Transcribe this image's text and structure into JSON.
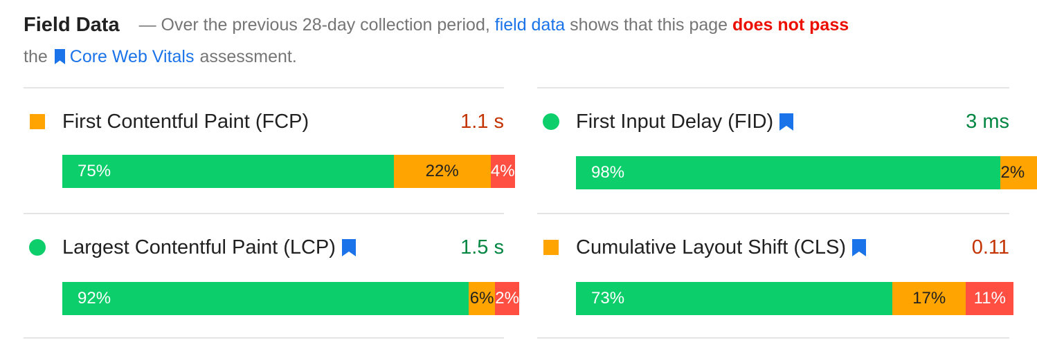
{
  "header": {
    "title": "Field Data",
    "desc_prefix": "— Over the previous 28-day collection period,",
    "field_data_link": "field data",
    "desc_middle": "shows that this page",
    "fail_text": "does not pass",
    "desc_the": "the",
    "cwv_link": "Core Web Vitals",
    "desc_suffix": "assessment."
  },
  "metrics": {
    "fcp": {
      "name": "First Contentful Paint (FCP)",
      "value": "1.1 s",
      "status": "needs-improvement",
      "distribution": {
        "good": "75%",
        "average": "22%",
        "poor": "4%"
      },
      "fractions": {
        "good": 0.75,
        "average": 0.22,
        "poor": 0.04
      }
    },
    "fid": {
      "name": "First Input Delay (FID)",
      "value": "3 ms",
      "status": "good",
      "distribution": {
        "good": "98%",
        "average": "2%",
        "poor": ""
      },
      "fractions": {
        "good": 0.98,
        "average": 0.02,
        "poor": 0
      }
    },
    "lcp": {
      "name": "Largest Contentful Paint (LCP)",
      "value": "1.5 s",
      "status": "good",
      "distribution": {
        "good": "92%",
        "average": "6%",
        "poor": "2%"
      },
      "fractions": {
        "good": 0.92,
        "average": 0.06,
        "poor": 0.02
      }
    },
    "cls": {
      "name": "Cumulative Layout Shift (CLS)",
      "value": "0.11",
      "status": "needs-improvement",
      "distribution": {
        "good": "73%",
        "average": "17%",
        "poor": "11%"
      },
      "fractions": {
        "good": 0.73,
        "average": 0.17,
        "poor": 0.11
      }
    }
  },
  "colors": {
    "good": "#0cce6b",
    "average": "#ffa400",
    "poor": "#ff4e42",
    "link": "#1a73e8",
    "fail": "#eb0f00"
  },
  "icons": {
    "cwv_badge": "bookmark-icon",
    "status_good": "green-circle-icon",
    "status_average": "orange-square-icon"
  }
}
